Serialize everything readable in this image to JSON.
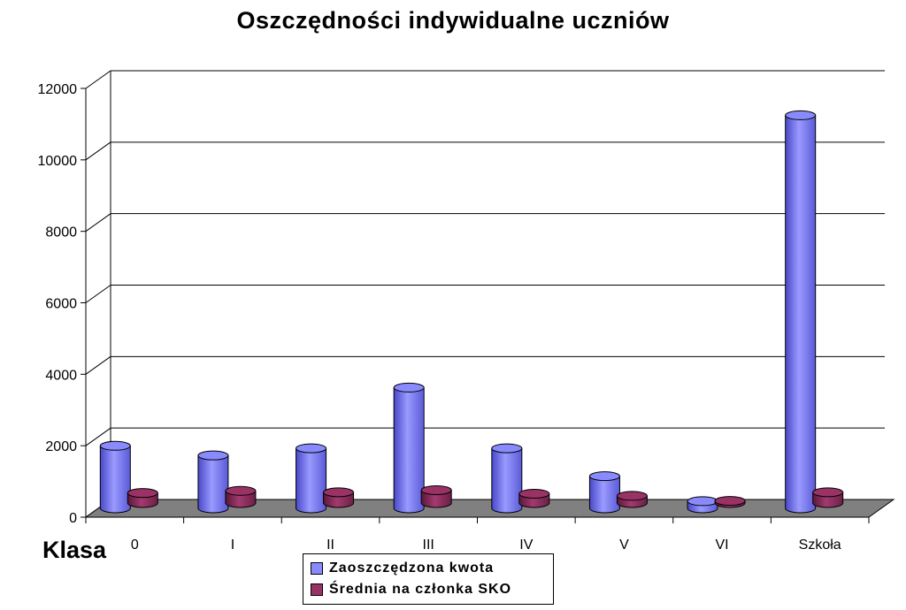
{
  "chart_data": {
    "type": "bar",
    "title": "Oszczędności indywidualne uczniów",
    "xlabel": "Klasa",
    "ylabel": "",
    "categories": [
      "0",
      "I",
      "II",
      "III",
      "IV",
      "V",
      "VI",
      "Szkoła"
    ],
    "series": [
      {
        "name": "Zaoszczędzona kwota",
        "color": "#8a8aff",
        "values": [
          1750,
          1480,
          1680,
          3380,
          1680,
          900,
          200,
          11000
        ]
      },
      {
        "name": "Średnia na członka SKO",
        "color": "#993366",
        "values": [
          280,
          340,
          300,
          360,
          260,
          200,
          60,
          300
        ]
      }
    ],
    "ylim": [
      0,
      12000
    ],
    "yticks": [
      0,
      2000,
      4000,
      6000,
      8000,
      10000,
      12000
    ],
    "grid": true,
    "legend_position": "bottom",
    "floor_color": "#808080",
    "style": "3d-cylinder"
  }
}
